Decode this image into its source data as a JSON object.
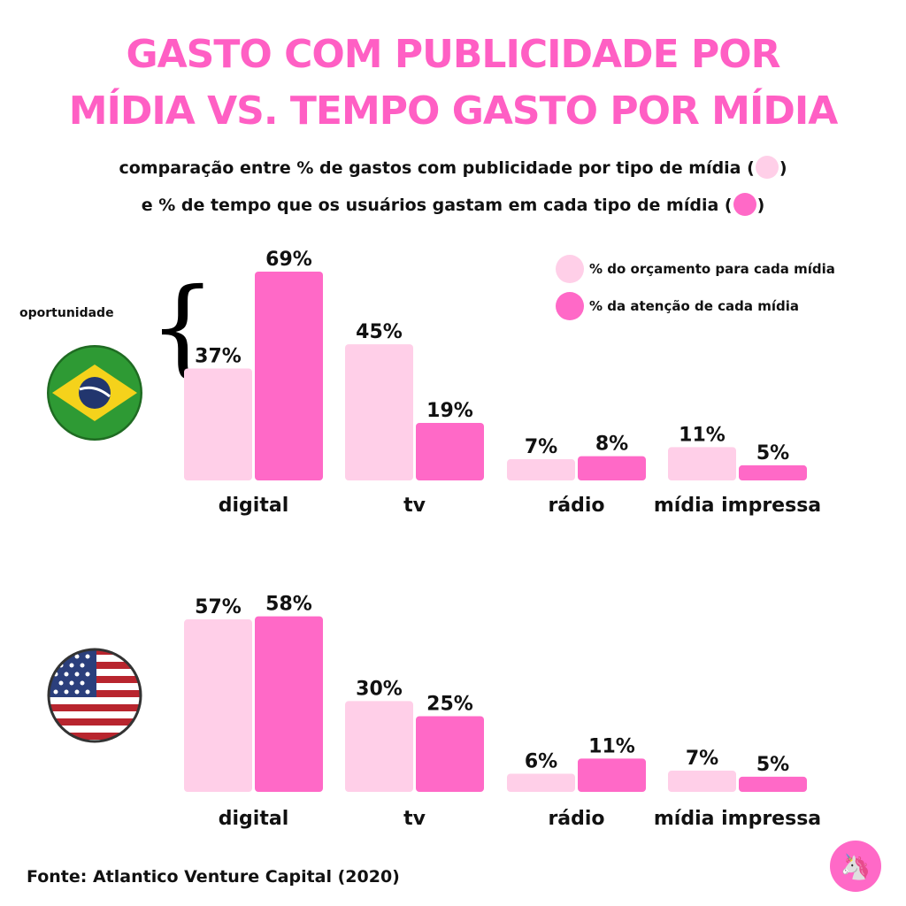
{
  "title_line1": "GASTO COM PUBLICIDADE POR",
  "title_line2": "MÍDIA VS. TEMPO GASTO POR MÍDIA",
  "subtitle_line1": "comparação entre % de gastos com publicidade por tipo de mídia (",
  "subtitle_line2": "e % de tempo que os usuários gastam em cada tipo de mídia (",
  "subtitle_close": ")",
  "legend": {
    "budget": "% do orçamento para cada mídia",
    "attention": "% da atenção de cada mídia"
  },
  "annotation": "oportunidade",
  "source": "Fonte: Atlantico Venture Capital (2020)",
  "colors": {
    "title": "#ff5fc4",
    "budget": "#ffcfe8",
    "attention": "#ff69c7"
  },
  "icons": {
    "brazil": "brazil-flag-icon",
    "usa": "usa-flag-icon",
    "logo": "unicorn-logo-icon"
  },
  "chart_data": [
    {
      "type": "bar",
      "categories": [
        "digital",
        "tv",
        "rádio",
        "mídia impressa"
      ],
      "series": [
        {
          "name": "% do orçamento para cada mídia",
          "values": [
            37,
            45,
            7,
            11
          ],
          "labels": [
            "37%",
            "45%",
            "7%",
            "11%"
          ]
        },
        {
          "name": "% da atenção de cada mídia",
          "values": [
            69,
            19,
            8,
            5
          ],
          "labels": [
            "69%",
            "19%",
            "8%",
            "5%"
          ]
        }
      ],
      "ylim": [
        0,
        69
      ],
      "grid": false,
      "legend": "top-right"
    },
    {
      "type": "bar",
      "categories": [
        "digital",
        "tv",
        "rádio",
        "mídia impressa"
      ],
      "series": [
        {
          "name": "% do orçamento para cada mídia",
          "values": [
            57,
            30,
            6,
            7
          ],
          "labels": [
            "57%",
            "30%",
            "6%",
            "7%"
          ]
        },
        {
          "name": "% da atenção de cada mídia",
          "values": [
            58,
            25,
            11,
            5
          ],
          "labels": [
            "58%",
            "25%",
            "11%",
            "5%"
          ]
        }
      ],
      "ylim": [
        0,
        69
      ],
      "grid": false,
      "legend": "top-right"
    }
  ]
}
